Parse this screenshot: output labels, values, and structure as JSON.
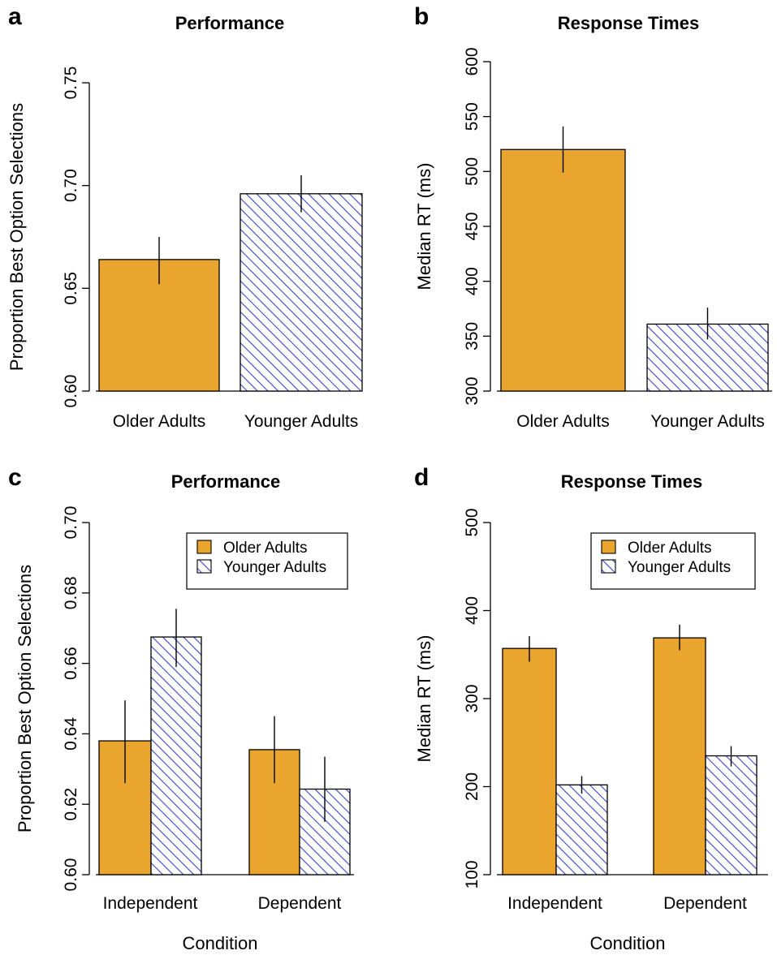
{
  "colors": {
    "older": "#E9A52E",
    "younger_hatch": "#3A45C8",
    "bar_stroke": "#000000",
    "background": "#ffffff"
  },
  "chart_data": [
    {
      "panel": "a",
      "type": "bar",
      "title": "Performance",
      "xlabel": "",
      "ylabel": "Proportion Best Option Selections",
      "ylim": [
        0.6,
        0.75
      ],
      "yticks": [
        "0.60",
        "0.65",
        "0.70",
        "0.75"
      ],
      "categories": [
        "Older Adults",
        "Younger Adults"
      ],
      "values": [
        0.664,
        0.696
      ],
      "error_low": [
        0.652,
        0.687
      ],
      "error_high": [
        0.675,
        0.705
      ],
      "fill": [
        "solid",
        "hatch"
      ],
      "grid": false,
      "legend": null
    },
    {
      "panel": "b",
      "type": "bar",
      "title": "Response Times",
      "xlabel": "",
      "ylabel": "Median RT (ms)",
      "ylim": [
        300,
        600
      ],
      "yticks": [
        "300",
        "350",
        "400",
        "450",
        "500",
        "550",
        "600"
      ],
      "categories": [
        "Older Adults",
        "Younger Adults"
      ],
      "values": [
        520,
        361
      ],
      "error_low": [
        499,
        347
      ],
      "error_high": [
        541,
        376
      ],
      "fill": [
        "solid",
        "hatch"
      ],
      "grid": false,
      "legend": null
    },
    {
      "panel": "c",
      "type": "bar",
      "title": "Performance",
      "xlabel": "Condition",
      "ylabel": "Proportion Best Option Selections",
      "ylim": [
        0.6,
        0.7
      ],
      "yticks": [
        "0.60",
        "0.62",
        "0.64",
        "0.66",
        "0.68",
        "0.70"
      ],
      "categories": [
        "Independent",
        "Dependent"
      ],
      "series": [
        {
          "name": "Older Adults",
          "fill": "solid",
          "values": [
            0.638,
            0.6355
          ],
          "error_low": [
            0.626,
            0.626
          ],
          "error_high": [
            0.6495,
            0.645
          ]
        },
        {
          "name": "Younger Adults",
          "fill": "hatch",
          "values": [
            0.6675,
            0.6243
          ],
          "error_low": [
            0.659,
            0.615
          ],
          "error_high": [
            0.6755,
            0.6335
          ]
        }
      ],
      "grid": false,
      "legend": "top-right"
    },
    {
      "panel": "d",
      "type": "bar",
      "title": "Response Times",
      "xlabel": "Condition",
      "ylabel": "Median RT (ms)",
      "ylim": [
        100,
        500
      ],
      "yticks": [
        "100",
        "200",
        "300",
        "400",
        "500"
      ],
      "categories": [
        "Independent",
        "Dependent"
      ],
      "series": [
        {
          "name": "Older Adults",
          "fill": "solid",
          "values": [
            357,
            369
          ],
          "error_low": [
            342,
            355
          ],
          "error_high": [
            371,
            384
          ]
        },
        {
          "name": "Younger Adults",
          "fill": "hatch",
          "values": [
            202,
            235
          ],
          "error_low": [
            192,
            223
          ],
          "error_high": [
            212,
            246
          ]
        }
      ],
      "grid": false,
      "legend": "top-right"
    }
  ]
}
